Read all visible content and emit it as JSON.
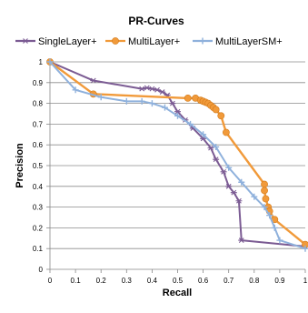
{
  "chart_data": {
    "type": "line",
    "title": "PR-Curves",
    "xlabel": "Recall",
    "ylabel": "Precision",
    "xlim": [
      0,
      1
    ],
    "ylim": [
      0,
      1
    ],
    "x_ticks": [
      0,
      0.1,
      0.2,
      0.3,
      0.4,
      0.5,
      0.6,
      0.7,
      0.8,
      0.9,
      1
    ],
    "x_tick_labels": [
      "0",
      "0.1",
      "0.2",
      "0.3",
      "0.4",
      "0.5",
      "0.6",
      "0.7",
      "0.8",
      "0.9",
      "1"
    ],
    "y_ticks": [
      0,
      0.1,
      0.2,
      0.3,
      0.4,
      0.5,
      0.6,
      0.7,
      0.8,
      0.9,
      1
    ],
    "y_tick_labels": [
      "0",
      "0.1",
      "0.2",
      "0.3",
      "0.4",
      "0.5",
      "0.6",
      "0.7",
      "0.8",
      "0.9",
      "1"
    ],
    "grid": "horizontal",
    "legend_position": "top",
    "series": [
      {
        "name": "SingleLayer+",
        "color": "#7b5b93",
        "marker": "star",
        "points": [
          [
            0,
            1
          ],
          [
            0.17,
            0.91
          ],
          [
            0.36,
            0.87
          ],
          [
            0.38,
            0.875
          ],
          [
            0.4,
            0.87
          ],
          [
            0.42,
            0.865
          ],
          [
            0.44,
            0.855
          ],
          [
            0.46,
            0.84
          ],
          [
            0.48,
            0.8
          ],
          [
            0.5,
            0.76
          ],
          [
            0.53,
            0.72
          ],
          [
            0.56,
            0.68
          ],
          [
            0.6,
            0.63
          ],
          [
            0.63,
            0.585
          ],
          [
            0.65,
            0.53
          ],
          [
            0.68,
            0.47
          ],
          [
            0.7,
            0.4
          ],
          [
            0.72,
            0.37
          ],
          [
            0.74,
            0.33
          ],
          [
            0.75,
            0.14
          ],
          [
            1,
            0.11
          ]
        ]
      },
      {
        "name": "MultiLayer+",
        "color": "#f19a3a",
        "marker": "circle",
        "points": [
          [
            0,
            1
          ],
          [
            0.17,
            0.845
          ],
          [
            0.54,
            0.825
          ],
          [
            0.57,
            0.825
          ],
          [
            0.59,
            0.815
          ],
          [
            0.6,
            0.81
          ],
          [
            0.61,
            0.805
          ],
          [
            0.62,
            0.8
          ],
          [
            0.63,
            0.79
          ],
          [
            0.64,
            0.78
          ],
          [
            0.65,
            0.77
          ],
          [
            0.67,
            0.74
          ],
          [
            0.69,
            0.66
          ],
          [
            0.84,
            0.41
          ],
          [
            0.84,
            0.38
          ],
          [
            0.845,
            0.34
          ],
          [
            0.855,
            0.3
          ],
          [
            0.86,
            0.28
          ],
          [
            0.88,
            0.24
          ],
          [
            1,
            0.12
          ]
        ]
      },
      {
        "name": "MultiLayerSM+",
        "color": "#8fb1dc",
        "marker": "plus",
        "points": [
          [
            0,
            1
          ],
          [
            0.1,
            0.865
          ],
          [
            0.2,
            0.83
          ],
          [
            0.3,
            0.81
          ],
          [
            0.36,
            0.81
          ],
          [
            0.4,
            0.8
          ],
          [
            0.45,
            0.78
          ],
          [
            0.5,
            0.74
          ],
          [
            0.55,
            0.7
          ],
          [
            0.6,
            0.65
          ],
          [
            0.65,
            0.59
          ],
          [
            0.7,
            0.49
          ],
          [
            0.75,
            0.42
          ],
          [
            0.8,
            0.35
          ],
          [
            0.84,
            0.3
          ],
          [
            0.86,
            0.26
          ],
          [
            0.88,
            0.2
          ],
          [
            0.9,
            0.14
          ],
          [
            1,
            0.1
          ]
        ]
      }
    ]
  }
}
